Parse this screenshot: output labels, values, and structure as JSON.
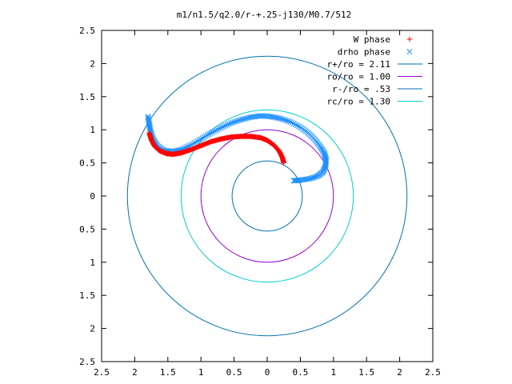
{
  "chart_data": {
    "type": "scatter",
    "title": "m1/n1.5/q2.0/r-+.25-j130/M0.7/512",
    "xlim": [
      -2.5,
      2.5
    ],
    "ylim": [
      -2.5,
      2.5
    ],
    "x_ticks": [
      "2.5",
      "2",
      "1.5",
      "1",
      "0.5",
      "0",
      "0.5",
      "1",
      "1.5",
      "2",
      "2.5"
    ],
    "y_ticks": [
      "2.5",
      "2",
      "1.5",
      "1",
      "0.5",
      "0",
      "0.5",
      "1",
      "1.5",
      "2",
      "2.5"
    ],
    "x_tick_values": [
      -2.5,
      -2,
      -1.5,
      -1,
      -0.5,
      0,
      0.5,
      1,
      1.5,
      2,
      2.5
    ],
    "y_tick_values": [
      2.5,
      2,
      1.5,
      1,
      0.5,
      0,
      -0.5,
      -1,
      -1.5,
      -2,
      -2.5
    ],
    "legend_position": "top-right",
    "grid": false,
    "legend": [
      {
        "label": "W phase",
        "symbol": "+",
        "color": "#ff0000"
      },
      {
        "label": "drho phase",
        "symbol": "x",
        "color": "#1e90ff"
      },
      {
        "label": "r+/ro = 2.11",
        "symbol": "line",
        "color": "#0072b2"
      },
      {
        "label": "ro/ro = 1.00",
        "symbol": "line",
        "color": "#9400d3"
      },
      {
        "label": "r-/ro = .53",
        "symbol": "line",
        "color": "#0072b2"
      },
      {
        "label": "rc/ro = 1.30",
        "symbol": "line",
        "color": "#00cccc"
      }
    ],
    "circles": [
      {
        "name": "r+/ro",
        "radius": 2.11,
        "color": "#0072b2"
      },
      {
        "name": "ro/ro",
        "radius": 1.0,
        "color": "#9400d3"
      },
      {
        "name": "r-/ro",
        "radius": 0.53,
        "color": "#0072b2"
      },
      {
        "name": "rc/ro",
        "radius": 1.3,
        "color": "#00cccc"
      }
    ],
    "series": [
      {
        "name": "W phase",
        "marker": "+",
        "color": "#ff0000",
        "points": [
          [
            -1.78,
            0.95
          ],
          [
            -1.75,
            0.85
          ],
          [
            -1.7,
            0.75
          ],
          [
            -1.62,
            0.68
          ],
          [
            -1.52,
            0.64
          ],
          [
            -1.42,
            0.63
          ],
          [
            -1.3,
            0.65
          ],
          [
            -1.15,
            0.7
          ],
          [
            -1.0,
            0.76
          ],
          [
            -0.85,
            0.82
          ],
          [
            -0.7,
            0.86
          ],
          [
            -0.55,
            0.89
          ],
          [
            -0.4,
            0.9
          ],
          [
            -0.25,
            0.9
          ],
          [
            -0.1,
            0.88
          ],
          [
            0.0,
            0.84
          ],
          [
            0.1,
            0.77
          ],
          [
            0.18,
            0.68
          ],
          [
            0.23,
            0.58
          ],
          [
            0.25,
            0.5
          ]
        ]
      },
      {
        "name": "drho phase",
        "marker": "x",
        "color": "#1e90ff",
        "points": [
          [
            -1.8,
            1.2
          ],
          [
            -1.78,
            1.08
          ],
          [
            -1.76,
            0.97
          ],
          [
            -1.72,
            0.86
          ],
          [
            -1.66,
            0.76
          ],
          [
            -1.56,
            0.69
          ],
          [
            -1.44,
            0.67
          ],
          [
            -1.3,
            0.7
          ],
          [
            -1.15,
            0.77
          ],
          [
            -1.0,
            0.86
          ],
          [
            -0.85,
            0.95
          ],
          [
            -0.7,
            1.03
          ],
          [
            -0.55,
            1.1
          ],
          [
            -0.4,
            1.15
          ],
          [
            -0.25,
            1.19
          ],
          [
            -0.1,
            1.21
          ],
          [
            0.05,
            1.2
          ],
          [
            0.2,
            1.17
          ],
          [
            0.35,
            1.12
          ],
          [
            0.5,
            1.04
          ],
          [
            0.62,
            0.95
          ],
          [
            0.72,
            0.85
          ],
          [
            0.8,
            0.75
          ],
          [
            0.86,
            0.65
          ],
          [
            0.89,
            0.55
          ],
          [
            0.88,
            0.45
          ],
          [
            0.84,
            0.36
          ],
          [
            0.76,
            0.3
          ],
          [
            0.64,
            0.26
          ],
          [
            0.5,
            0.24
          ],
          [
            0.4,
            0.23
          ]
        ]
      }
    ]
  }
}
